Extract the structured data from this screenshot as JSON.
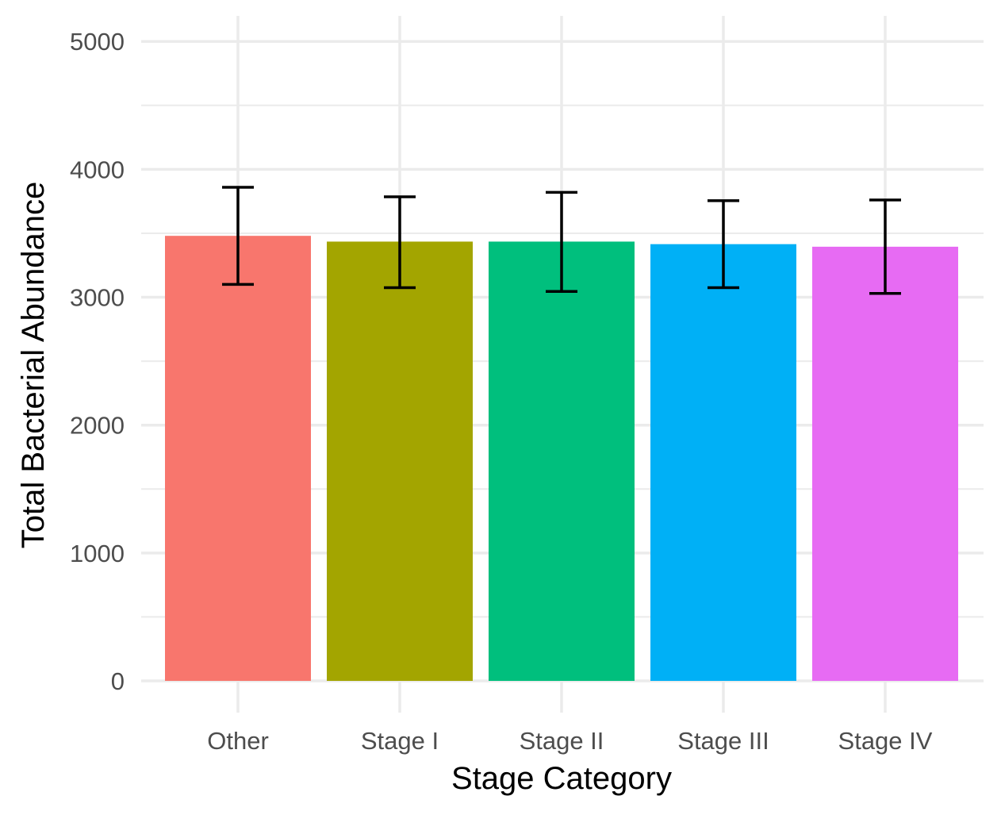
{
  "chart_data": {
    "type": "bar",
    "title": "",
    "xlabel": "Stage Category",
    "ylabel": "Total Bacterial Abundance",
    "categories": [
      "Other",
      "Stage I",
      "Stage II",
      "Stage III",
      "Stage IV"
    ],
    "values": [
      3480,
      3435,
      3435,
      3415,
      3395
    ],
    "error_low": [
      3100,
      3075,
      3045,
      3075,
      3030
    ],
    "error_high": [
      3860,
      3785,
      3820,
      3755,
      3760
    ],
    "colors": [
      "#F8766D",
      "#A3A500",
      "#00BF7D",
      "#00B0F6",
      "#E76BF3"
    ],
    "ylim": [
      0,
      5200
    ],
    "yticks": [
      0,
      1000,
      2000,
      3000,
      4000,
      5000
    ],
    "ytick_labels": [
      "0",
      "1000",
      "2000",
      "3000",
      "4000",
      "5000"
    ],
    "grid": true,
    "legend": "none"
  }
}
